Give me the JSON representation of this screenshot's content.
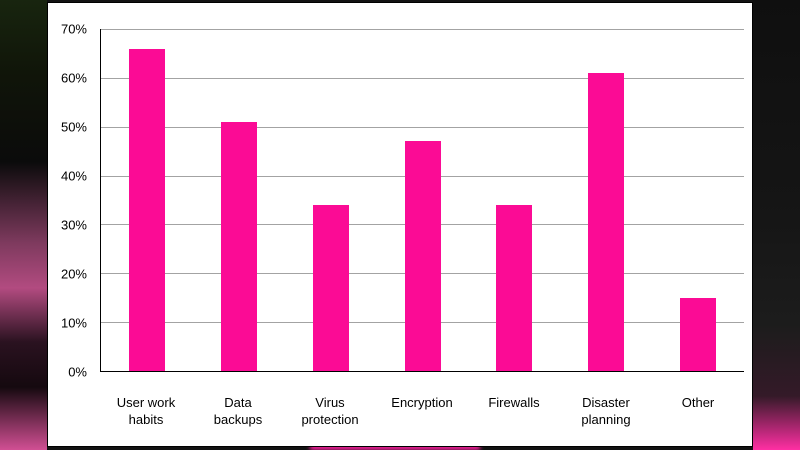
{
  "chart_data": {
    "type": "bar",
    "title": "",
    "categories": [
      "User work habits",
      "Data backups",
      "Virus protection",
      "Encryption",
      "Firewalls",
      "Disaster planning",
      "Other"
    ],
    "category_lines": [
      [
        "User work",
        "habits"
      ],
      [
        "Data",
        "backups"
      ],
      [
        "Virus",
        "protection"
      ],
      [
        "Encryption"
      ],
      [
        "Firewalls"
      ],
      [
        "Disaster",
        "planning"
      ],
      [
        "Other"
      ]
    ],
    "values": [
      66,
      51,
      34,
      47,
      34,
      61,
      15
    ],
    "unit": "%",
    "ylim": [
      0,
      70
    ],
    "ytick_step": 10,
    "ytick_labels": [
      "0%",
      "10%",
      "20%",
      "30%",
      "40%",
      "50%",
      "60%",
      "70%"
    ],
    "bar_color": "#fb0b95",
    "gridline_color": "#a3a3a3",
    "grid": true,
    "legend": "none",
    "xlabel": "",
    "ylabel": ""
  }
}
